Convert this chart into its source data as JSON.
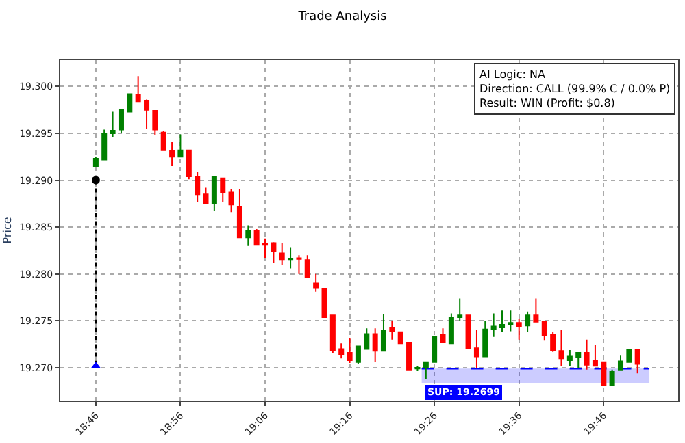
{
  "chart_data": {
    "type": "candlestick",
    "title": "Trade Analysis",
    "ylabel": "Price",
    "x": [
      18.7667,
      18.7833,
      18.8,
      18.8167,
      18.8333,
      18.85,
      18.8667,
      18.8833,
      18.9,
      18.9167,
      18.9333,
      18.95,
      18.9667,
      18.9833,
      19.0,
      19.0167,
      19.0333,
      19.05,
      19.0667,
      19.0833,
      19.1,
      19.1167,
      19.1333,
      19.15,
      19.1667,
      19.1833,
      19.2,
      19.2167,
      19.2333,
      19.25,
      19.2667,
      19.2833,
      19.3,
      19.3167,
      19.3333,
      19.35,
      19.3667,
      19.3833,
      19.4,
      19.4167,
      19.4333,
      19.45,
      19.4667,
      19.4833,
      19.5,
      19.5167,
      19.5333,
      19.55,
      19.5667,
      19.5833,
      19.6,
      19.6167,
      19.6333,
      19.65,
      19.6667,
      19.6833,
      19.7,
      19.7167,
      19.7333,
      19.75,
      19.7667,
      19.7833,
      19.8,
      19.8167,
      19.8333
    ],
    "ohlc": [
      [
        19.2915,
        19.2925,
        19.2914,
        19.2923
      ],
      [
        19.2922,
        19.2954,
        19.2922,
        19.295
      ],
      [
        19.295,
        19.2973,
        19.2946,
        19.2953
      ],
      [
        19.2954,
        19.2975,
        19.295,
        19.2975
      ],
      [
        19.2973,
        19.2992,
        19.2973,
        19.2992
      ],
      [
        19.2991,
        19.3011,
        19.2984,
        19.2984
      ],
      [
        19.2985,
        19.2986,
        19.2955,
        19.2975
      ],
      [
        19.2974,
        19.2974,
        19.2948,
        19.2954
      ],
      [
        19.2951,
        19.2953,
        19.2932,
        19.2932
      ],
      [
        19.2931,
        19.2941,
        19.2915,
        19.2925
      ],
      [
        19.2925,
        19.2949,
        19.2925,
        19.2932
      ],
      [
        19.2932,
        19.2932,
        19.2901,
        19.2904
      ],
      [
        19.2904,
        19.2909,
        19.2877,
        19.2885
      ],
      [
        19.2885,
        19.2892,
        19.2875,
        19.2875
      ],
      [
        19.2875,
        19.2904,
        19.2867,
        19.2904
      ],
      [
        19.2902,
        19.2902,
        19.2877,
        19.2887
      ],
      [
        19.2887,
        19.2891,
        19.2866,
        19.2874
      ],
      [
        19.2872,
        19.2891,
        19.2839,
        19.2839
      ],
      [
        19.2839,
        19.2852,
        19.283,
        19.2846
      ],
      [
        19.2846,
        19.2848,
        19.2831,
        19.2831
      ],
      [
        19.2832,
        19.2838,
        19.2817,
        19.2831
      ],
      [
        19.2833,
        19.2834,
        19.2812,
        19.2824
      ],
      [
        19.2822,
        19.2833,
        19.281,
        19.2815
      ],
      [
        19.2815,
        19.2828,
        19.2806,
        19.2816
      ],
      [
        19.2817,
        19.282,
        19.28,
        19.2816
      ],
      [
        19.2815,
        19.282,
        19.2797,
        19.2797
      ],
      [
        19.279,
        19.28,
        19.2781,
        19.2785
      ],
      [
        19.2784,
        19.2784,
        19.2754,
        19.2754
      ],
      [
        19.2756,
        19.2756,
        19.2716,
        19.2719
      ],
      [
        19.272,
        19.2726,
        19.271,
        19.2714
      ],
      [
        19.2716,
        19.2732,
        19.2705,
        19.2708
      ],
      [
        19.2706,
        19.2723,
        19.2704,
        19.2723
      ],
      [
        19.272,
        19.2742,
        19.272,
        19.2736
      ],
      [
        19.2736,
        19.2742,
        19.2706,
        19.2718
      ],
      [
        19.2718,
        19.2757,
        19.2718,
        19.274
      ],
      [
        19.2743,
        19.275,
        19.273,
        19.2739
      ],
      [
        19.2738,
        19.2738,
        19.2726,
        19.2726
      ],
      [
        19.2727,
        19.2727,
        19.2698,
        19.2698
      ],
      [
        19.2699,
        19.2702,
        19.2697,
        19.27
      ],
      [
        19.27,
        19.2706,
        19.2688,
        19.2706
      ],
      [
        19.2706,
        19.2733,
        19.2706,
        19.2733
      ],
      [
        19.2735,
        19.2742,
        19.2727,
        19.2727
      ],
      [
        19.2726,
        19.2758,
        19.2726,
        19.2754
      ],
      [
        19.2754,
        19.2774,
        19.275,
        19.2756
      ],
      [
        19.2756,
        19.2756,
        19.2721,
        19.2721
      ],
      [
        19.2721,
        19.274,
        19.27,
        19.2712
      ],
      [
        19.2712,
        19.275,
        19.2712,
        19.2741
      ],
      [
        19.2741,
        19.2758,
        19.2733,
        19.2744
      ],
      [
        19.2743,
        19.2761,
        19.2738,
        19.2746
      ],
      [
        19.2746,
        19.2761,
        19.2739,
        19.2748
      ],
      [
        19.2748,
        19.2752,
        19.273,
        19.2744
      ],
      [
        19.2745,
        19.276,
        19.2738,
        19.2756
      ],
      [
        19.2756,
        19.2774,
        19.2749,
        19.2749
      ],
      [
        19.2749,
        19.2749,
        19.2729,
        19.2735
      ],
      [
        19.2735,
        19.2738,
        19.2717,
        19.2719
      ],
      [
        19.2718,
        19.274,
        19.2702,
        19.271
      ],
      [
        19.2708,
        19.2719,
        19.2702,
        19.2712
      ],
      [
        19.2711,
        19.2716,
        19.27,
        19.2716
      ],
      [
        19.2716,
        19.273,
        19.2698,
        19.2703
      ],
      [
        19.2708,
        19.2724,
        19.2702,
        19.2702
      ],
      [
        19.2706,
        19.2706,
        19.2681,
        19.2681
      ],
      [
        19.2681,
        19.2698,
        19.2681,
        19.2696
      ],
      [
        19.2698,
        19.2713,
        19.2698,
        19.2707
      ],
      [
        19.2706,
        19.2719,
        19.2706,
        19.2719
      ],
      [
        19.2719,
        19.2719,
        19.2694,
        19.2704
      ]
    ],
    "colors": [
      "#008000",
      "#008000",
      "#008000",
      "#008000",
      "#008000",
      "#ff0000",
      "#ff0000",
      "#ff0000",
      "#ff0000",
      "#ff0000",
      "#008000",
      "#ff0000",
      "#ff0000",
      "#ff0000",
      "#008000",
      "#ff0000",
      "#ff0000",
      "#ff0000",
      "#008000",
      "#ff0000",
      "#ff0000",
      "#ff0000",
      "#ff0000",
      "#008000",
      "#ff0000",
      "#ff0000",
      "#ff0000",
      "#ff0000",
      "#ff0000",
      "#ff0000",
      "#ff0000",
      "#008000",
      "#008000",
      "#ff0000",
      "#008000",
      "#ff0000",
      "#ff0000",
      "#ff0000",
      "#008000",
      "#008000",
      "#008000",
      "#ff0000",
      "#008000",
      "#008000",
      "#ff0000",
      "#ff0000",
      "#008000",
      "#008000",
      "#008000",
      "#008000",
      "#ff0000",
      "#008000",
      "#ff0000",
      "#ff0000",
      "#ff0000",
      "#ff0000",
      "#008000",
      "#008000",
      "#ff0000",
      "#ff0000",
      "#ff0000",
      "#008000",
      "#008000",
      "#008000",
      "#ff0000"
    ],
    "series": [
      {
        "type": "line",
        "x": [
          18.7667,
          18.7667
        ],
        "values": [
          19.29,
          19.2702
        ],
        "color": "#000000",
        "line_style": "dotted",
        "marker": "none"
      },
      {
        "type": "scatter",
        "x": [
          18.7667
        ],
        "values": [
          19.29
        ],
        "color": "#000000",
        "marker": "circle"
      },
      {
        "type": "scatter",
        "x": [
          18.7667
        ],
        "values": [
          19.2702
        ],
        "color": "#0000ff",
        "marker": "triangle"
      },
      {
        "type": "line",
        "name": "SUP: 19.2699",
        "x": [
          19.4083,
          19.8567
        ],
        "values": [
          19.2699,
          19.2699
        ],
        "lower": [
          19.2684,
          19.2684
        ],
        "upper": [
          19.2699,
          19.2699
        ],
        "color": "#0000ff",
        "line_style": "dashed",
        "marker": "none"
      }
    ],
    "annotations": [
      "AI Logic: NA",
      "Direction: CALL (99.9% C / 0.0% P)",
      "Result: WIN (Profit: $0.8)"
    ],
    "xlim": [
      18.6967,
      19.9133
    ],
    "xticks": [
      {
        "value": 18.7667,
        "label": "18:46"
      },
      {
        "value": 18.9333,
        "label": "18:56"
      },
      {
        "value": 19.1,
        "label": "19:06"
      },
      {
        "value": 19.2667,
        "label": "19:16"
      },
      {
        "value": 19.4333,
        "label": "19:26"
      },
      {
        "value": 19.6,
        "label": "19:36"
      },
      {
        "value": 19.7667,
        "label": "19:46"
      }
    ],
    "ylim": [
      19.2665,
      19.3028
    ],
    "yticks": [
      {
        "value": 19.27,
        "label": "19.270"
      },
      {
        "value": 19.275,
        "label": "19.275"
      },
      {
        "value": 19.28,
        "label": "19.280"
      },
      {
        "value": 19.285,
        "label": "19.285"
      },
      {
        "value": 19.29,
        "label": "19.290"
      },
      {
        "value": 19.295,
        "label": "19.295"
      },
      {
        "value": 19.3,
        "label": "19.300"
      }
    ],
    "grid": true,
    "legend": false
  }
}
